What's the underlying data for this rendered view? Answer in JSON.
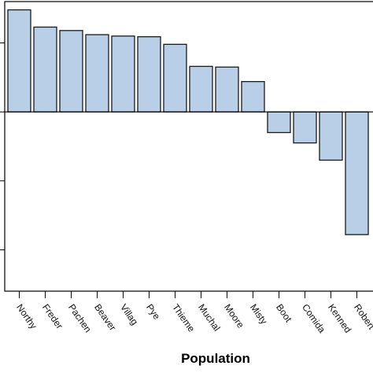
{
  "chart_data": {
    "type": "bar",
    "categories": [
      "Northy",
      "Freder",
      "Pachen",
      "Beaver",
      "Villag",
      "Pye",
      "Thieme",
      "Muchal",
      "Moore",
      "Misty",
      "Boot",
      "Comida",
      "Kenned",
      "Robert"
    ],
    "values": [
      1.48,
      1.23,
      1.18,
      1.12,
      1.1,
      1.09,
      0.98,
      0.66,
      0.65,
      0.44,
      -0.3,
      -0.45,
      -0.7,
      -1.78
    ],
    "xlabel": "Population",
    "ylabel": "",
    "ylim": [
      -2.6,
      1.6
    ],
    "grid": false,
    "colors": {
      "bar_fill": "#b9cfe8",
      "bar_stroke": "#1a1a1a",
      "axis": "#000000"
    }
  }
}
